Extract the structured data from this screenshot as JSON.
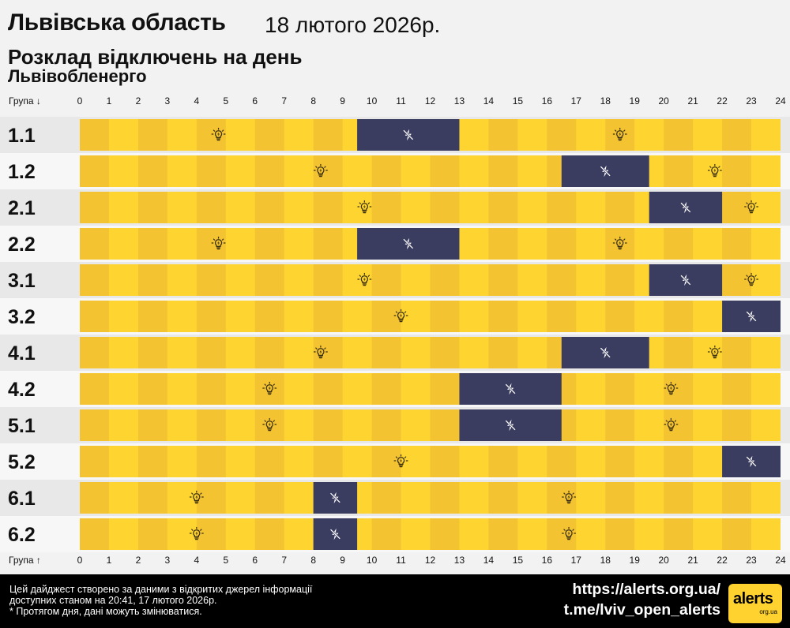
{
  "header": {
    "region": "Львівська область",
    "date": "18 лютого 2026р.",
    "subtitle": "Розклад відключень на день",
    "provider": "Львівобленерго"
  },
  "colors": {
    "on_dark": "#f3c332",
    "on_light": "#fed530",
    "off": "#3b3d60",
    "row_bg_a": "#e8e8e8",
    "row_bg_b": "#f7f7f7",
    "icon_on": "#3a2f10",
    "icon_off": "#ffffff"
  },
  "icons": {
    "power_on": "lightbulb-icon",
    "power_off": "power-off-bolt-icon"
  },
  "chart_data": {
    "type": "gantt",
    "x_axis_caption_top": "Група ↓",
    "x_axis_caption_bottom": "Група ↑",
    "x_range": [
      0,
      24
    ],
    "hours": [
      "0",
      "1",
      "2",
      "3",
      "4",
      "5",
      "6",
      "7",
      "8",
      "9",
      "10",
      "11",
      "12",
      "13",
      "14",
      "15",
      "16",
      "17",
      "18",
      "19",
      "20",
      "21",
      "22",
      "23",
      "24"
    ],
    "groups": [
      {
        "name": "1.1",
        "outages": [
          [
            9.5,
            13
          ]
        ]
      },
      {
        "name": "1.2",
        "outages": [
          [
            16.5,
            19.5
          ]
        ]
      },
      {
        "name": "2.1",
        "outages": [
          [
            19.5,
            22
          ]
        ]
      },
      {
        "name": "2.2",
        "outages": [
          [
            9.5,
            13
          ]
        ]
      },
      {
        "name": "3.1",
        "outages": [
          [
            19.5,
            22
          ]
        ]
      },
      {
        "name": "3.2",
        "outages": [
          [
            22,
            24
          ]
        ]
      },
      {
        "name": "4.1",
        "outages": [
          [
            16.5,
            19.5
          ]
        ]
      },
      {
        "name": "4.2",
        "outages": [
          [
            13,
            16.5
          ]
        ]
      },
      {
        "name": "5.1",
        "outages": [
          [
            13,
            16.5
          ]
        ]
      },
      {
        "name": "5.2",
        "outages": [
          [
            22,
            24
          ]
        ]
      },
      {
        "name": "6.1",
        "outages": [
          [
            8,
            9.5
          ]
        ]
      },
      {
        "name": "6.2",
        "outages": [
          [
            8,
            9.5
          ]
        ]
      }
    ]
  },
  "footer": {
    "disclaimer_line1": "Цей дайджест створено за даними з відкритих джерел інформації",
    "disclaimer_line2": "доступних станом на 20:41, 17 лютого 2026р.",
    "disclaimer_line3": "* Протягом дня, дані можуть змінюватися.",
    "link_site": "https://alerts.org.ua/",
    "link_telegram": "t.me/lviv_open_alerts",
    "logo_word": "alerts",
    "logo_sub": "org.ua"
  }
}
